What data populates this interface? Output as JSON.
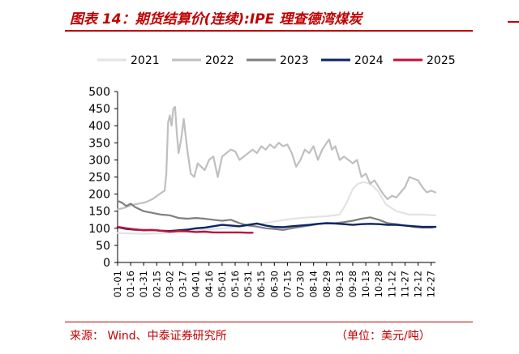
{
  "header": {
    "title": "图表 14：期货结算价(连续):IPE 理查德湾煤炭"
  },
  "footer": {
    "source": "来源：  Wind、中泰证券研究所",
    "unit": "（单位：美元/吨）"
  },
  "chart_data": {
    "type": "line",
    "title": "",
    "xlabel": "",
    "ylabel": "",
    "ylim": [
      0,
      500
    ],
    "yticks": [
      0,
      50,
      100,
      150,
      200,
      250,
      300,
      350,
      400,
      450,
      500
    ],
    "x_range": [
      0,
      365
    ],
    "x_tick_labels": [
      "01-01",
      "01-16",
      "01-31",
      "02-15",
      "03-02",
      "03-17",
      "04-01",
      "04-16",
      "05-01",
      "05-16",
      "05-31",
      "06-15",
      "06-30",
      "07-15",
      "07-30",
      "08-14",
      "08-29",
      "09-13",
      "09-28",
      "10-13",
      "10-28",
      "11-12",
      "11-27",
      "12-12",
      "12-27"
    ],
    "x_tick_days": [
      0,
      15,
      30,
      45,
      60,
      75,
      90,
      105,
      120,
      135,
      150,
      165,
      180,
      195,
      210,
      225,
      240,
      255,
      270,
      285,
      300,
      315,
      330,
      345,
      360
    ],
    "legend_position": "top",
    "grid": false,
    "series": [
      {
        "name": "2021",
        "color": "#e3e3e3",
        "width": 2.2,
        "x": [
          0,
          15,
          30,
          45,
          60,
          75,
          90,
          105,
          120,
          135,
          150,
          165,
          180,
          195,
          210,
          225,
          240,
          255,
          262,
          270,
          276,
          282,
          288,
          294,
          300,
          308,
          320,
          335,
          350,
          365
        ],
        "y": [
          86,
          85,
          84,
          85,
          87,
          90,
          94,
          97,
          100,
          103,
          108,
          113,
          120,
          126,
          130,
          133,
          135,
          140,
          170,
          215,
          230,
          235,
          232,
          222,
          205,
          170,
          150,
          140,
          140,
          138
        ]
      },
      {
        "name": "2022",
        "color": "#bfbfbf",
        "width": 2.2,
        "x": [
          0,
          8,
          16,
          24,
          32,
          40,
          48,
          54,
          56,
          58,
          60,
          62,
          64,
          66,
          68,
          70,
          73,
          76,
          80,
          84,
          88,
          92,
          96,
          100,
          105,
          110,
          115,
          120,
          125,
          130,
          135,
          140,
          145,
          150,
          155,
          160,
          165,
          170,
          175,
          180,
          185,
          190,
          195,
          200,
          205,
          210,
          215,
          220,
          225,
          230,
          235,
          240,
          243,
          246,
          250,
          255,
          260,
          265,
          270,
          275,
          280,
          285,
          290,
          295,
          300,
          305,
          310,
          315,
          320,
          325,
          330,
          335,
          340,
          345,
          350,
          355,
          360,
          365
        ],
        "y": [
          155,
          160,
          168,
          172,
          176,
          185,
          200,
          210,
          260,
          410,
          430,
          400,
          450,
          455,
          380,
          320,
          360,
          420,
          330,
          260,
          250,
          290,
          280,
          270,
          300,
          310,
          250,
          310,
          320,
          330,
          325,
          300,
          310,
          320,
          330,
          320,
          340,
          330,
          345,
          335,
          350,
          340,
          345,
          320,
          280,
          300,
          330,
          320,
          340,
          300,
          330,
          350,
          360,
          330,
          340,
          300,
          310,
          300,
          290,
          300,
          250,
          260,
          230,
          240,
          220,
          200,
          185,
          195,
          190,
          205,
          220,
          250,
          245,
          240,
          220,
          205,
          210,
          205
        ]
      },
      {
        "name": "2023",
        "color": "#7f7f7f",
        "width": 2.2,
        "x": [
          0,
          5,
          10,
          15,
          20,
          30,
          40,
          50,
          60,
          70,
          80,
          90,
          100,
          110,
          120,
          130,
          140,
          150,
          160,
          170,
          180,
          190,
          200,
          210,
          220,
          230,
          240,
          250,
          260,
          270,
          280,
          290,
          300,
          310,
          320,
          330,
          340,
          350,
          360,
          365
        ],
        "y": [
          180,
          175,
          165,
          172,
          162,
          150,
          145,
          140,
          138,
          130,
          128,
          130,
          128,
          125,
          122,
          125,
          115,
          108,
          105,
          100,
          98,
          95,
          100,
          104,
          108,
          112,
          115,
          115,
          118,
          122,
          128,
          132,
          125,
          115,
          112,
          108,
          104,
          102,
          102,
          104
        ]
      },
      {
        "name": "2024",
        "color": "#0d2566",
        "width": 2.4,
        "x": [
          0,
          10,
          20,
          30,
          40,
          50,
          60,
          70,
          80,
          90,
          100,
          110,
          120,
          130,
          140,
          150,
          160,
          170,
          180,
          190,
          200,
          210,
          220,
          230,
          240,
          250,
          260,
          270,
          280,
          290,
          300,
          310,
          320,
          330,
          340,
          350,
          360,
          365
        ],
        "y": [
          103,
          98,
          96,
          95,
          95,
          93,
          92,
          94,
          96,
          100,
          102,
          106,
          110,
          108,
          106,
          110,
          114,
          108,
          104,
          103,
          106,
          108,
          110,
          113,
          115,
          114,
          112,
          110,
          112,
          113,
          112,
          110,
          110,
          108,
          106,
          104,
          104,
          104
        ]
      },
      {
        "name": "2025",
        "color": "#c0123c",
        "width": 2.4,
        "x": [
          0,
          10,
          20,
          30,
          40,
          50,
          60,
          70,
          80,
          90,
          100,
          110,
          120,
          130,
          140,
          150,
          155
        ],
        "y": [
          104,
          100,
          97,
          94,
          95,
          93,
          90,
          92,
          91,
          89,
          90,
          88,
          88,
          88,
          88,
          87,
          87
        ]
      }
    ]
  }
}
